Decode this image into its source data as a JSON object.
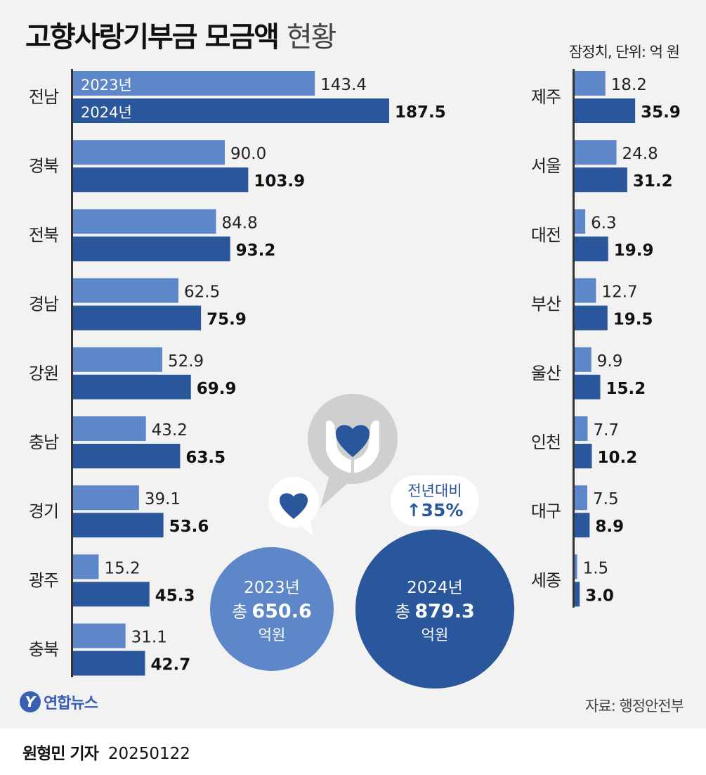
{
  "header": {
    "title_bold": "고향사랑기부금 모금액",
    "title_light": "현황",
    "note": "잠정치, 단위: 억 원"
  },
  "legend": {
    "y2023": "2023년",
    "y2024": "2024년"
  },
  "colors": {
    "y2023": "#5d87c8",
    "y2024": "#2a579b",
    "panel": "#f2f2f2"
  },
  "chart_data": [
    {
      "type": "bar",
      "orientation": "horizontal",
      "categories": [
        "전남",
        "경북",
        "전북",
        "경남",
        "강원",
        "충남",
        "경기",
        "광주",
        "충북"
      ],
      "series": [
        {
          "name": "2023년",
          "values": [
            143.4,
            90.0,
            84.8,
            62.5,
            52.9,
            43.2,
            39.1,
            15.2,
            31.1
          ]
        },
        {
          "name": "2024년",
          "values": [
            187.5,
            103.9,
            93.2,
            75.9,
            69.9,
            63.5,
            53.6,
            45.3,
            42.7
          ]
        }
      ]
    },
    {
      "type": "bar",
      "orientation": "horizontal",
      "categories": [
        "제주",
        "서울",
        "대전",
        "부산",
        "울산",
        "인천",
        "대구",
        "세종"
      ],
      "series": [
        {
          "name": "2023년",
          "values": [
            18.2,
            24.8,
            6.3,
            12.7,
            9.9,
            7.7,
            7.5,
            1.5
          ]
        },
        {
          "name": "2024년",
          "values": [
            35.9,
            31.2,
            19.9,
            19.5,
            15.2,
            10.2,
            8.9,
            3.0
          ]
        }
      ]
    }
  ],
  "totals": {
    "y2023": {
      "year": "2023년",
      "prefix": "총",
      "amount": "650.6",
      "unit": "억원"
    },
    "y2024": {
      "year": "2024년",
      "prefix": "총",
      "amount": "879.3",
      "unit": "억원"
    },
    "change": {
      "label": "전년대비",
      "value": "↑35%"
    }
  },
  "icons": {
    "hands": "hands-holding-heart-icon",
    "heart": "heart-icon"
  },
  "footer": {
    "logo_text": "연합뉴스",
    "source": "자료: 행정안전부",
    "reporter": "원형민 기자",
    "date": "20250122"
  }
}
